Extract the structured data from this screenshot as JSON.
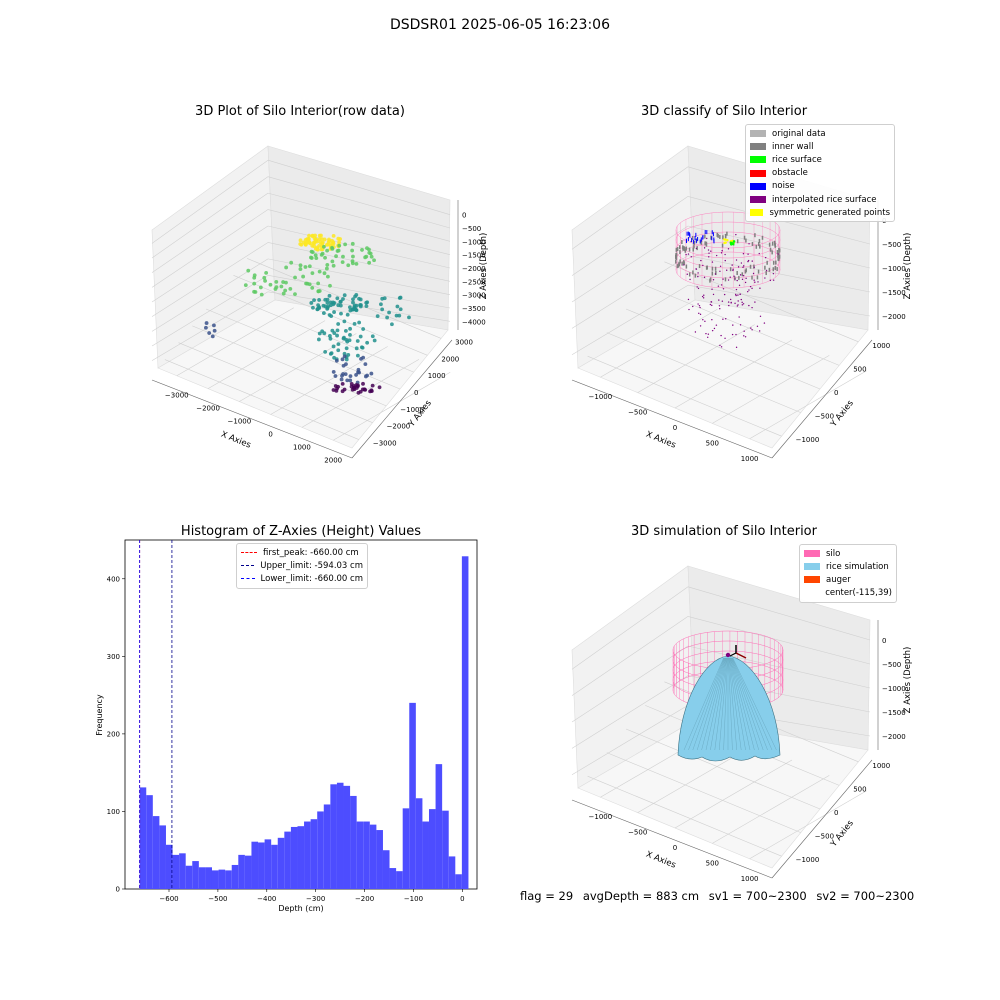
{
  "figure": {
    "title": "DSDSR01 2025-06-05 16:23:06"
  },
  "colors": {
    "grey_light": "#b3b3b3",
    "grey_dark": "#808080",
    "green": "#00ff00",
    "red": "#ff0000",
    "blue": "#0000ff",
    "purple": "#800080",
    "yellow": "#ffff00",
    "pink": "#ff69b4",
    "skyblue": "#87ceeb",
    "orange": "#ff4500",
    "hist_blue": "#4d4dff"
  },
  "plot1": {
    "title": "3D Plot of Silo Interior(row data)",
    "xlabel": "X Axies",
    "ylabel": "Y Axies",
    "zlabel": "Z Axies (Depth)",
    "xticks": [
      "−3000",
      "−2000",
      "−1000",
      "0",
      "1000",
      "2000"
    ],
    "yticks": [
      "−3000",
      "−2000",
      "−1000",
      "0",
      "1000",
      "2000",
      "3000"
    ],
    "zticks": [
      "0",
      "−500",
      "−1000",
      "−1500",
      "−2000",
      "−2500",
      "−3000",
      "−3500",
      "−4000"
    ]
  },
  "plot2": {
    "title": "3D classify of Silo Interior",
    "xlabel": "X Axies",
    "ylabel": "Y Axies",
    "zlabel": "Z Axies (Depth)",
    "xticks": [
      "−1000",
      "−500",
      "0",
      "500",
      "1000"
    ],
    "yticks": [
      "−1000",
      "−500",
      "0",
      "500",
      "1000"
    ],
    "zticks": [
      "0",
      "−500",
      "−1000",
      "−1500",
      "−2000"
    ],
    "legend": [
      {
        "label": "original data",
        "color": "#b3b3b3"
      },
      {
        "label": "inner wall",
        "color": "#808080"
      },
      {
        "label": "rice surface",
        "color": "#00ff00"
      },
      {
        "label": "obstacle",
        "color": "#ff0000"
      },
      {
        "label": "noise",
        "color": "#0000ff"
      },
      {
        "label": "interpolated rice surface",
        "color": "#800080"
      },
      {
        "label": "symmetric generated points",
        "color": "#ffff00"
      }
    ]
  },
  "plot3": {
    "title": "3D simulation of Silo Interior",
    "xlabel": "X Axies",
    "ylabel": "Y Axies",
    "zlabel": "Z Axies (Depth)",
    "xticks": [
      "−1000",
      "−500",
      "0",
      "500",
      "1000"
    ],
    "yticks": [
      "−1000",
      "−500",
      "0",
      "500",
      "1000"
    ],
    "zticks": [
      "0",
      "−500",
      "−1000",
      "−1500",
      "−2000"
    ],
    "legend": [
      {
        "label": "silo",
        "color": "#ff69b4"
      },
      {
        "label": "rice simulation",
        "color": "#87ceeb"
      },
      {
        "label": "auger",
        "color": "#ff4500"
      },
      {
        "label": "center(-115,39)",
        "color": ""
      }
    ]
  },
  "footer": {
    "flag": "flag = 29",
    "avg": "avgDepth = 883 cm",
    "sv1": "sv1 = 700~2300",
    "sv2": "sv2 = 700~2300"
  },
  "chart_data": {
    "type": "bar",
    "title": "Histogram of Z-Axies (Height) Values",
    "xlabel": "Depth (cm)",
    "ylabel": "Frequency",
    "xlim": [
      -690,
      30
    ],
    "ylim": [
      0,
      450
    ],
    "xticks": [
      "−600",
      "−500",
      "−400",
      "−300",
      "−200",
      "−100",
      "0"
    ],
    "yticks": [
      "0",
      "100",
      "200",
      "300",
      "400"
    ],
    "bin_start": -660,
    "bin_width": 13.45,
    "values": [
      131,
      121,
      94,
      82,
      57,
      44,
      46,
      30,
      36,
      28,
      28,
      24,
      25,
      24,
      31,
      44,
      43,
      61,
      60,
      64,
      57,
      66,
      74,
      80,
      81,
      87,
      90,
      100,
      109,
      135,
      137,
      133,
      120,
      87,
      87,
      83,
      76,
      50,
      27,
      23,
      104,
      240,
      117,
      87,
      103,
      161,
      101,
      42,
      19,
      429
    ],
    "vlines": [
      {
        "label": "first_peak: -660.00 cm",
        "x": -660,
        "color": "#ff0000"
      },
      {
        "label": "Upper_limit: -594.03 cm",
        "x": -594.03,
        "color": "#00008b"
      },
      {
        "label": "Lower_limit: -660.00 cm",
        "x": -660,
        "color": "#0000ff"
      }
    ],
    "legend_position": "top-center"
  }
}
